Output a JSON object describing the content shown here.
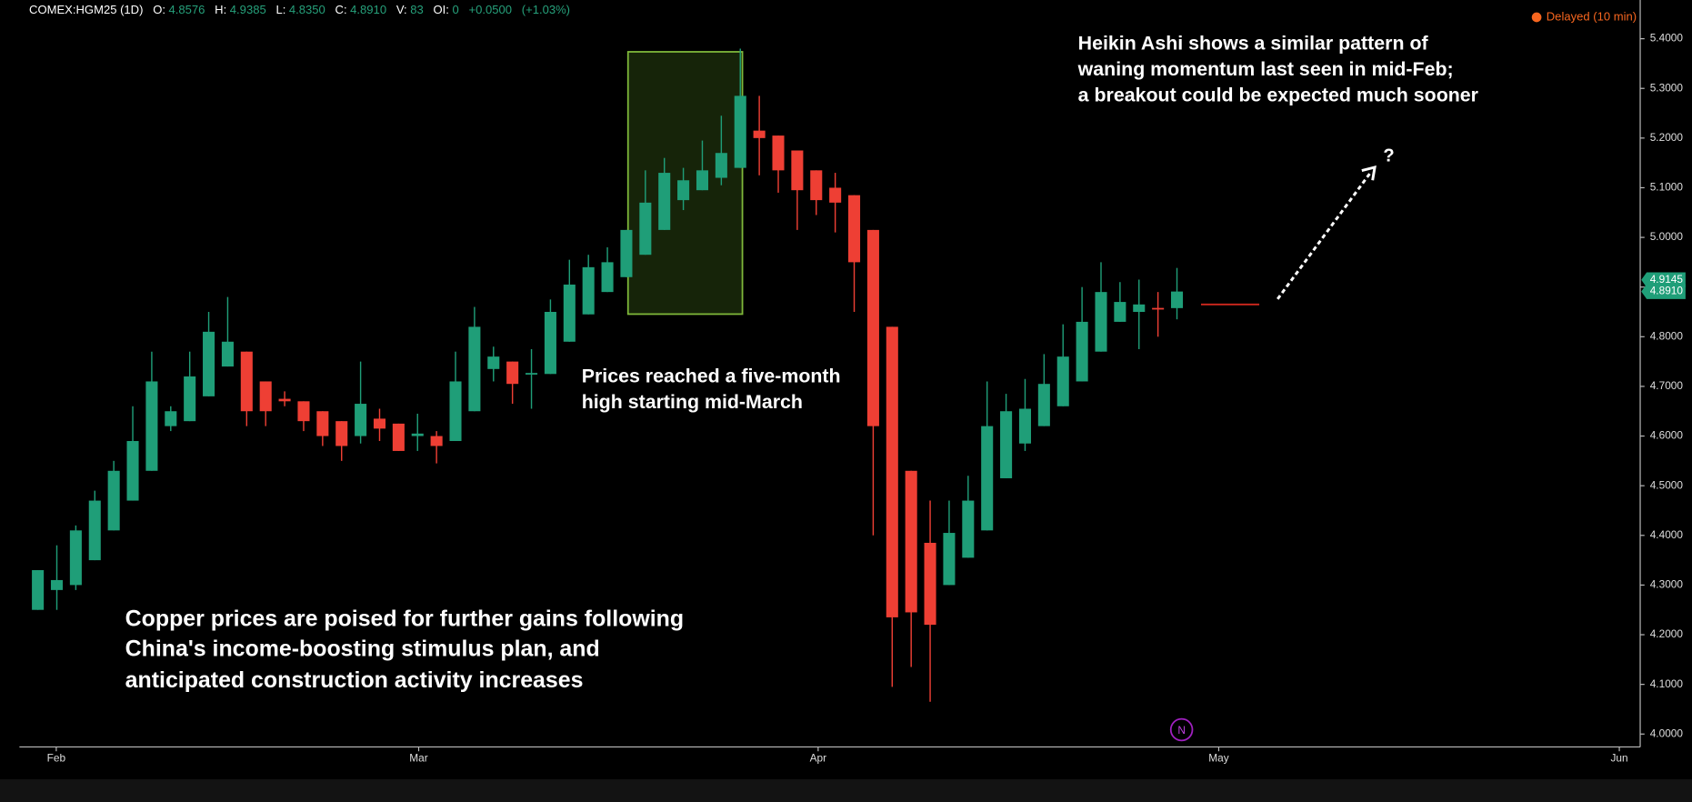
{
  "header": {
    "symbol": "COMEX:HGM25 (1D)",
    "fields": [
      {
        "label": "O:",
        "value": "4.8576"
      },
      {
        "label": "H:",
        "value": "4.9385"
      },
      {
        "label": "L:",
        "value": "4.8350"
      },
      {
        "label": "C:",
        "value": "4.8910"
      },
      {
        "label": "V:",
        "value": "83"
      },
      {
        "label": "OI:",
        "value": "0"
      }
    ],
    "change": "+0.0500",
    "change_pct": "(+1.03%)",
    "status": "Delayed (10 min)"
  },
  "annotations": {
    "top": [
      "Heikin Ashi shows a similar pattern of",
      "waning momentum last seen in mid-Feb;",
      "a breakout could be expected much sooner"
    ],
    "middle": [
      "Prices reached a five-month",
      "high starting mid-March"
    ],
    "bottom": [
      "Copper prices are poised for further gains following",
      "China's income-boosting stimulus plan, and",
      "anticipated construction activity increases"
    ],
    "question": "?",
    "badge": "N"
  },
  "chart_data": {
    "type": "candlestick",
    "open": [
      4.25,
      4.29,
      4.3,
      4.35,
      4.41,
      4.47,
      4.53,
      4.62,
      4.63,
      4.68,
      4.74,
      4.77,
      4.71,
      4.675,
      4.67,
      4.65,
      4.63,
      4.6,
      4.635,
      4.625,
      4.6,
      4.6,
      4.59,
      4.65,
      4.735,
      4.75,
      4.725,
      4.725,
      4.79,
      4.845,
      4.89,
      4.92,
      4.965,
      5.015,
      5.075,
      5.095,
      5.12,
      5.14,
      5.215,
      5.205,
      5.175,
      5.135,
      5.1,
      5.085,
      5.015,
      4.82,
      4.53,
      4.385,
      4.3,
      4.355,
      4.41,
      4.515,
      4.585,
      4.62,
      4.66,
      4.71,
      4.77,
      4.83,
      4.85,
      4.858,
      4.8576
    ],
    "high": [
      4.33,
      4.38,
      4.42,
      4.49,
      4.55,
      4.66,
      4.77,
      4.66,
      4.77,
      4.85,
      4.88,
      4.77,
      4.71,
      4.69,
      4.67,
      4.65,
      4.63,
      4.75,
      4.655,
      4.625,
      4.645,
      4.61,
      4.77,
      4.86,
      4.78,
      4.75,
      4.775,
      4.875,
      4.955,
      4.965,
      4.98,
      5.015,
      5.135,
      5.16,
      5.14,
      5.195,
      5.245,
      5.38,
      5.285,
      5.205,
      5.175,
      5.135,
      5.13,
      5.085,
      5.015,
      4.82,
      4.53,
      4.47,
      4.47,
      4.52,
      4.71,
      4.685,
      4.715,
      4.765,
      4.825,
      4.9,
      4.95,
      4.91,
      4.915,
      4.89,
      4.9385
    ],
    "low": [
      4.25,
      4.25,
      4.29,
      4.35,
      4.41,
      4.47,
      4.53,
      4.61,
      4.63,
      4.68,
      4.74,
      4.62,
      4.62,
      4.66,
      4.61,
      4.58,
      4.55,
      4.585,
      4.59,
      4.57,
      4.57,
      4.545,
      4.59,
      4.65,
      4.71,
      4.665,
      4.655,
      4.725,
      4.79,
      4.845,
      4.89,
      4.92,
      4.965,
      5.015,
      5.055,
      5.095,
      5.105,
      5.14,
      5.125,
      5.09,
      5.015,
      5.045,
      5.01,
      4.85,
      4.4,
      4.095,
      4.135,
      4.065,
      4.3,
      4.355,
      4.41,
      4.515,
      4.57,
      4.62,
      4.66,
      4.71,
      4.77,
      4.83,
      4.775,
      4.8,
      4.835
    ],
    "close": [
      4.33,
      4.31,
      4.41,
      4.47,
      4.53,
      4.59,
      4.71,
      4.65,
      4.72,
      4.81,
      4.79,
      4.65,
      4.65,
      4.67,
      4.63,
      4.6,
      4.58,
      4.665,
      4.615,
      4.57,
      4.605,
      4.58,
      4.71,
      4.82,
      4.76,
      4.705,
      4.727,
      4.85,
      4.905,
      4.94,
      4.95,
      5.015,
      5.07,
      5.13,
      5.115,
      5.135,
      5.17,
      5.285,
      5.2,
      5.135,
      5.095,
      5.075,
      5.07,
      4.95,
      4.62,
      4.235,
      4.245,
      4.22,
      4.405,
      4.47,
      4.62,
      4.65,
      4.655,
      4.705,
      4.76,
      4.83,
      4.89,
      4.87,
      4.865,
      4.855,
      4.891
    ],
    "up_color": "#1f9e78",
    "down_color": "#ee3f34",
    "xlim": [
      -0.97,
      84.4
    ],
    "xticks": [
      {
        "value": 0.97,
        "label": "Feb"
      },
      {
        "value": 20.06,
        "label": "Mar"
      },
      {
        "value": 41.1,
        "label": "Apr"
      },
      {
        "value": 62.2,
        "label": "May"
      },
      {
        "value": 83.3,
        "label": "Jun"
      }
    ],
    "ylim": [
      3.974,
      5.478
    ],
    "yticks": [
      {
        "value": 4.0,
        "label": "4.0000"
      },
      {
        "value": 4.1,
        "label": "4.1000"
      },
      {
        "value": 4.2,
        "label": "4.2000"
      },
      {
        "value": 4.3,
        "label": "4.3000"
      },
      {
        "value": 4.4,
        "label": "4.4000"
      },
      {
        "value": 4.5,
        "label": "4.5000"
      },
      {
        "value": 4.6,
        "label": "4.6000"
      },
      {
        "value": 4.7,
        "label": "4.7000"
      },
      {
        "value": 4.8,
        "label": "4.8000"
      },
      {
        "value": 4.9,
        "label": "4.9000"
      },
      {
        "value": 5.0,
        "label": "5.0000"
      },
      {
        "value": 5.1,
        "label": "5.1000"
      },
      {
        "value": 5.2,
        "label": "5.2000"
      },
      {
        "value": 5.3,
        "label": "5.3000"
      },
      {
        "value": 5.4,
        "label": "5.4000"
      }
    ],
    "price_tags": [
      4.9145,
      {
        "value": 4.891,
        "label": "4.8910"
      }
    ],
    "reference_level": 4.865,
    "reference_color": "#d0281e"
  }
}
